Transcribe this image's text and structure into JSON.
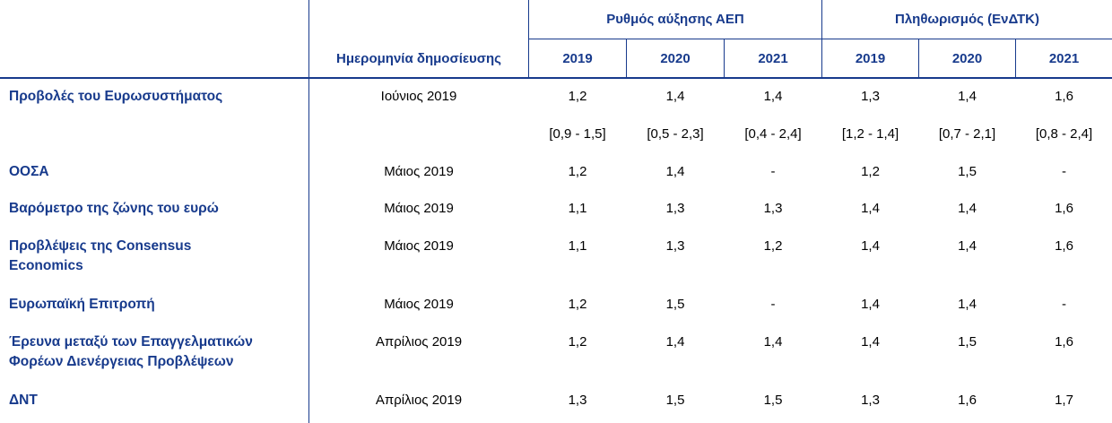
{
  "header": {
    "gdp_group": "Ρυθμός αύξησης ΑΕΠ",
    "inflation_group": "Πληθωρισμός (ΕνΔΤΚ)",
    "date_column": "Ημερομηνία δημοσίευσης",
    "years": [
      "2019",
      "2020",
      "2021",
      "2019",
      "2020",
      "2021"
    ]
  },
  "rows": [
    {
      "label": "Προβολές του Ευρωσυστήματος",
      "date": "Ιούνιος 2019",
      "values": [
        "1,2",
        "1,4",
        "1,4",
        "1,3",
        "1,4",
        "1,6"
      ]
    },
    {
      "label": "",
      "date": "",
      "values": [
        "[0,9 - 1,5]",
        "[0,5 - 2,3]",
        "[0,4 - 2,4]",
        "[1,2 - 1,4]",
        "[0,7 - 2,1]",
        "[0,8 - 2,4]"
      ]
    },
    {
      "label": "ΟΟΣΑ",
      "date": "Μάιος 2019",
      "values": [
        "1,2",
        "1,4",
        "-",
        "1,2",
        "1,5",
        "-"
      ]
    },
    {
      "label": "Βαρόμετρο της ζώνης του ευρώ",
      "date": "Μάιος 2019",
      "values": [
        "1,1",
        "1,3",
        "1,3",
        "1,4",
        "1,4",
        "1,6"
      ]
    },
    {
      "label": "Προβλέψεις της Consensus Economics",
      "date": "Μάιος 2019",
      "values": [
        "1,1",
        "1,3",
        "1,2",
        "1,4",
        "1,4",
        "1,6"
      ]
    },
    {
      "label": "Ευρωπαϊκή Επιτροπή",
      "date": "Μάιος 2019",
      "values": [
        "1,2",
        "1,5",
        "-",
        "1,4",
        "1,4",
        "-"
      ]
    },
    {
      "label": "Έρευνα μεταξύ των Επαγγελματικών Φορέων Διενέργειας Προβλέψεων",
      "date": "Απρίλιος 2019",
      "values": [
        "1,2",
        "1,4",
        "1,4",
        "1,4",
        "1,5",
        "1,6"
      ]
    },
    {
      "label": "ΔΝΤ",
      "date": "Απρίλιος 2019",
      "values": [
        "1,3",
        "1,5",
        "1,5",
        "1,3",
        "1,6",
        "1,7"
      ]
    }
  ]
}
